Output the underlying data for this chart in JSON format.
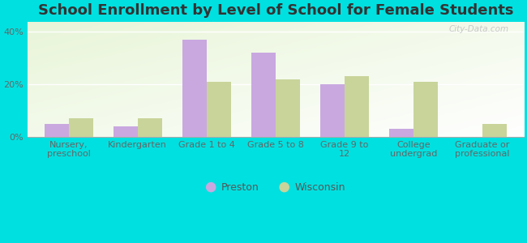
{
  "title": "School Enrollment by Level of School for Female Students",
  "categories": [
    "Nursery,\npreschool",
    "Kindergarten",
    "Grade 1 to 4",
    "Grade 5 to 8",
    "Grade 9 to\n12",
    "College\nundergrad",
    "Graduate or\nprofessional"
  ],
  "preston": [
    5.0,
    4.0,
    37.0,
    32.0,
    20.0,
    3.0,
    0.0
  ],
  "wisconsin": [
    7.0,
    7.0,
    21.0,
    22.0,
    23.0,
    21.0,
    5.0
  ],
  "preston_color": "#c9a8e0",
  "wisconsin_color": "#c8d49a",
  "background_color": "#00e0e0",
  "ylim": [
    0,
    44
  ],
  "yticks": [
    0,
    20,
    40
  ],
  "ytick_labels": [
    "0%",
    "20%",
    "40%"
  ],
  "bar_width": 0.35,
  "title_fontsize": 13,
  "tick_fontsize": 8,
  "legend_fontsize": 9,
  "watermark": "City-Data.com"
}
